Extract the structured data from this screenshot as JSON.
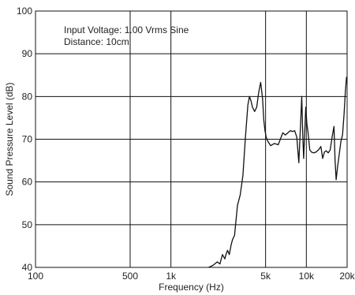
{
  "chart_data": {
    "type": "line",
    "title": "",
    "xlabel": "Frequency (Hz)",
    "ylabel": "Sound Pressure Level (dB)",
    "x_scale": "log",
    "xlim": [
      100,
      20000
    ],
    "ylim": [
      40,
      100
    ],
    "grid": true,
    "x_ticks": [
      {
        "value": 100,
        "label": "100"
      },
      {
        "value": 500,
        "label": "500"
      },
      {
        "value": 1000,
        "label": "1k"
      },
      {
        "value": 5000,
        "label": "5k"
      },
      {
        "value": 10000,
        "label": "10k"
      },
      {
        "value": 20000,
        "label": "20k"
      }
    ],
    "y_ticks": [
      {
        "value": 40,
        "label": "40"
      },
      {
        "value": 50,
        "label": "50"
      },
      {
        "value": 60,
        "label": "60"
      },
      {
        "value": 70,
        "label": "70"
      },
      {
        "value": 80,
        "label": "80"
      },
      {
        "value": 90,
        "label": "90"
      },
      {
        "value": 100,
        "label": "100"
      }
    ],
    "annotations": [
      "Input Voltage: 1.00 Vrms Sine",
      "Distance: 10cm"
    ],
    "series": [
      {
        "color": "#111111",
        "x": [
          1900,
          2050,
          2200,
          2300,
          2400,
          2500,
          2560,
          2620,
          2700,
          2780,
          2850,
          2950,
          3100,
          3250,
          3400,
          3550,
          3700,
          3800,
          3900,
          4000,
          4150,
          4300,
          4450,
          4600,
          4750,
          4850,
          4950,
          5050,
          5200,
          5450,
          5800,
          6200,
          6700,
          7000,
          7300,
          7600,
          7900,
          8200,
          8500,
          8800,
          9050,
          9250,
          9400,
          9550,
          9700,
          9900,
          10100,
          10300,
          10600,
          10900,
          11300,
          11800,
          12300,
          12800,
          13200,
          13600,
          14000,
          14500,
          15000,
          15500,
          16000,
          16300,
          16600,
          17000,
          17500,
          18000,
          18500,
          19000,
          19400,
          19800,
          20000
        ],
        "values": [
          40.0,
          40.5,
          41.3,
          40.8,
          43.0,
          42.0,
          43.2,
          44.0,
          43.0,
          45.2,
          46.5,
          47.5,
          54.5,
          57.0,
          61.5,
          70.5,
          78.0,
          80.0,
          79.0,
          77.5,
          76.5,
          77.5,
          81.0,
          83.3,
          79.5,
          74.5,
          72.0,
          70.5,
          69.5,
          68.5,
          69.0,
          68.7,
          71.5,
          71.0,
          71.5,
          72.0,
          71.8,
          72.0,
          70.5,
          64.5,
          73.0,
          80.0,
          71.5,
          65.5,
          70.5,
          77.5,
          73.5,
          71.5,
          67.5,
          67.0,
          66.8,
          67.0,
          67.5,
          68.3,
          65.5,
          67.0,
          67.3,
          66.8,
          67.5,
          70.5,
          73.0,
          65.0,
          60.5,
          63.5,
          66.5,
          69.5,
          71.0,
          76.0,
          81.0,
          84.5,
          84.5
        ]
      }
    ]
  }
}
